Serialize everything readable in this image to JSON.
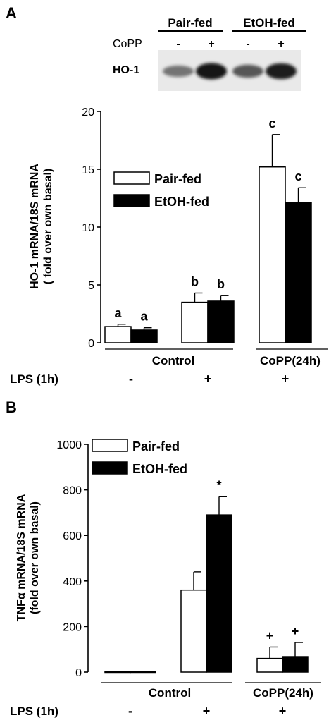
{
  "panel_a": {
    "label": "A",
    "blot": {
      "groups": [
        "Pair-fed",
        "EtOH-fed"
      ],
      "treatment_label": "CoPP",
      "lane_signs": [
        "-",
        "+",
        "-",
        "+"
      ],
      "protein_label": "HO-1",
      "band_intensity": [
        0.45,
        0.95,
        0.6,
        0.9
      ]
    }
  },
  "panel_b": {
    "label": "B"
  },
  "chart_data": [
    {
      "type": "bar",
      "panel": "A",
      "ylabel_line1": "HO-1 mRNA/18S mRNA",
      "ylabel_line2": "( fold over own basal)",
      "ylim": [
        0,
        20
      ],
      "yticks": [
        "0",
        "5",
        "10",
        "15",
        "20"
      ],
      "categories": [
        "Control / LPS -",
        "Control / LPS +",
        "CoPP(24h) / LPS +"
      ],
      "series": [
        {
          "name": "Pair-fed",
          "values": [
            1.4,
            3.5,
            15.2
          ],
          "errors": [
            0.2,
            0.8,
            2.8
          ],
          "color": "#ffffff"
        },
        {
          "name": "EtOH-fed",
          "values": [
            1.1,
            3.6,
            12.1
          ],
          "errors": [
            0.2,
            0.5,
            1.3
          ],
          "color": "#000000"
        }
      ],
      "annotations": [
        [
          "a",
          "a"
        ],
        [
          "b",
          "b"
        ],
        [
          "c",
          "c"
        ]
      ],
      "group_labels": [
        "Control",
        "CoPP(24h)"
      ],
      "lps_label": "LPS (1h)",
      "lps_signs": [
        "-",
        "+",
        "+"
      ],
      "legend": "inside-upper-left"
    },
    {
      "type": "bar",
      "panel": "B",
      "ylabel_line1": "TNFα mRNA/18S mRNA",
      "ylabel_line2": "(fold over own basal)",
      "ylim": [
        0,
        1000
      ],
      "yticks": [
        "0",
        "200",
        "400",
        "600",
        "800",
        "1000"
      ],
      "categories": [
        "Control / LPS -",
        "Control / LPS +",
        "CoPP(24h) / LPS +"
      ],
      "series": [
        {
          "name": "Pair-fed",
          "values": [
            1,
            360,
            60
          ],
          "errors": [
            0,
            80,
            50
          ],
          "color": "#ffffff"
        },
        {
          "name": "EtOH-fed",
          "values": [
            1,
            690,
            68
          ],
          "errors": [
            0,
            80,
            62
          ],
          "color": "#000000"
        }
      ],
      "annotations": [
        [
          "",
          ""
        ],
        [
          "",
          "*"
        ],
        [
          "+",
          "+"
        ]
      ],
      "group_labels": [
        "Control",
        "CoPP(24h)"
      ],
      "lps_label": "LPS (1h)",
      "lps_signs": [
        "-",
        "+",
        "+"
      ],
      "legend": "top-left"
    }
  ]
}
